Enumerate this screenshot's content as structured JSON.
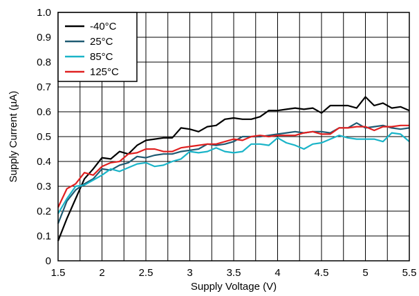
{
  "chart_data": {
    "type": "line",
    "xlabel": "Supply Voltage (V)",
    "ylabel": "Supply Current (µA)",
    "xlim": [
      1.5,
      5.5
    ],
    "ylim": [
      0,
      1.0
    ],
    "grid": true,
    "legend_position": "top-left",
    "x_ticks": [
      "1.5",
      "2",
      "2.5",
      "3",
      "3.5",
      "4",
      "4.5",
      "5",
      "5.5"
    ],
    "x_tick_values": [
      1.5,
      2,
      2.5,
      3,
      3.5,
      4,
      4.5,
      5,
      5.5
    ],
    "y_ticks": [
      "0",
      "0.1",
      "0.2",
      "0.3",
      "0.4",
      "0.5",
      "0.6",
      "0.7",
      "0.8",
      "0.9",
      "1.0"
    ],
    "y_tick_values": [
      0,
      0.1,
      0.2,
      0.3,
      0.4,
      0.5,
      0.6,
      0.7,
      0.8,
      0.9,
      1.0
    ],
    "x_minor_step": 0.25,
    "x": [
      1.5,
      1.6,
      1.7,
      1.8,
      1.9,
      2.0,
      2.1,
      2.2,
      2.3,
      2.4,
      2.5,
      2.6,
      2.7,
      2.8,
      2.9,
      3.0,
      3.1,
      3.2,
      3.3,
      3.4,
      3.5,
      3.6,
      3.7,
      3.8,
      3.9,
      4.0,
      4.1,
      4.2,
      4.3,
      4.4,
      4.5,
      4.6,
      4.7,
      4.8,
      4.9,
      5.0,
      5.1,
      5.2,
      5.3,
      5.4,
      5.5
    ],
    "series": [
      {
        "name": "-40°C",
        "color": "#000000",
        "values": [
          0.08,
          0.17,
          0.25,
          0.33,
          0.37,
          0.415,
          0.41,
          0.44,
          0.43,
          0.465,
          0.485,
          0.49,
          0.495,
          0.495,
          0.535,
          0.53,
          0.52,
          0.54,
          0.545,
          0.57,
          0.575,
          0.57,
          0.57,
          0.58,
          0.605,
          0.605,
          0.61,
          0.615,
          0.61,
          0.615,
          0.595,
          0.625,
          0.625,
          0.625,
          0.615,
          0.66,
          0.625,
          0.635,
          0.615,
          0.62,
          0.605
        ]
      },
      {
        "name": "25°C",
        "color": "#1f5a72",
        "values": [
          0.15,
          0.24,
          0.285,
          0.31,
          0.33,
          0.37,
          0.365,
          0.385,
          0.395,
          0.42,
          0.415,
          0.425,
          0.43,
          0.43,
          0.44,
          0.445,
          0.45,
          0.47,
          0.465,
          0.47,
          0.48,
          0.5,
          0.5,
          0.5,
          0.505,
          0.51,
          0.515,
          0.52,
          0.515,
          0.52,
          0.52,
          0.515,
          0.535,
          0.535,
          0.555,
          0.535,
          0.54,
          0.545,
          0.535,
          0.53,
          0.535
        ]
      },
      {
        "name": "85°C",
        "color": "#1ab4c8",
        "values": [
          0.19,
          0.25,
          0.3,
          0.305,
          0.325,
          0.345,
          0.37,
          0.36,
          0.375,
          0.39,
          0.395,
          0.38,
          0.385,
          0.4,
          0.41,
          0.44,
          0.435,
          0.44,
          0.455,
          0.44,
          0.435,
          0.44,
          0.47,
          0.47,
          0.465,
          0.495,
          0.475,
          0.465,
          0.45,
          0.47,
          0.475,
          0.49,
          0.505,
          0.495,
          0.49,
          0.49,
          0.49,
          0.48,
          0.515,
          0.51,
          0.48
        ]
      },
      {
        "name": "125°C",
        "color": "#e02020",
        "values": [
          0.215,
          0.29,
          0.31,
          0.355,
          0.345,
          0.38,
          0.395,
          0.4,
          0.43,
          0.435,
          0.45,
          0.45,
          0.44,
          0.44,
          0.455,
          0.46,
          0.465,
          0.47,
          0.47,
          0.48,
          0.49,
          0.485,
          0.5,
          0.505,
          0.5,
          0.505,
          0.505,
          0.505,
          0.515,
          0.52,
          0.51,
          0.51,
          0.535,
          0.535,
          0.54,
          0.54,
          0.525,
          0.54,
          0.54,
          0.545,
          0.545
        ]
      }
    ]
  }
}
